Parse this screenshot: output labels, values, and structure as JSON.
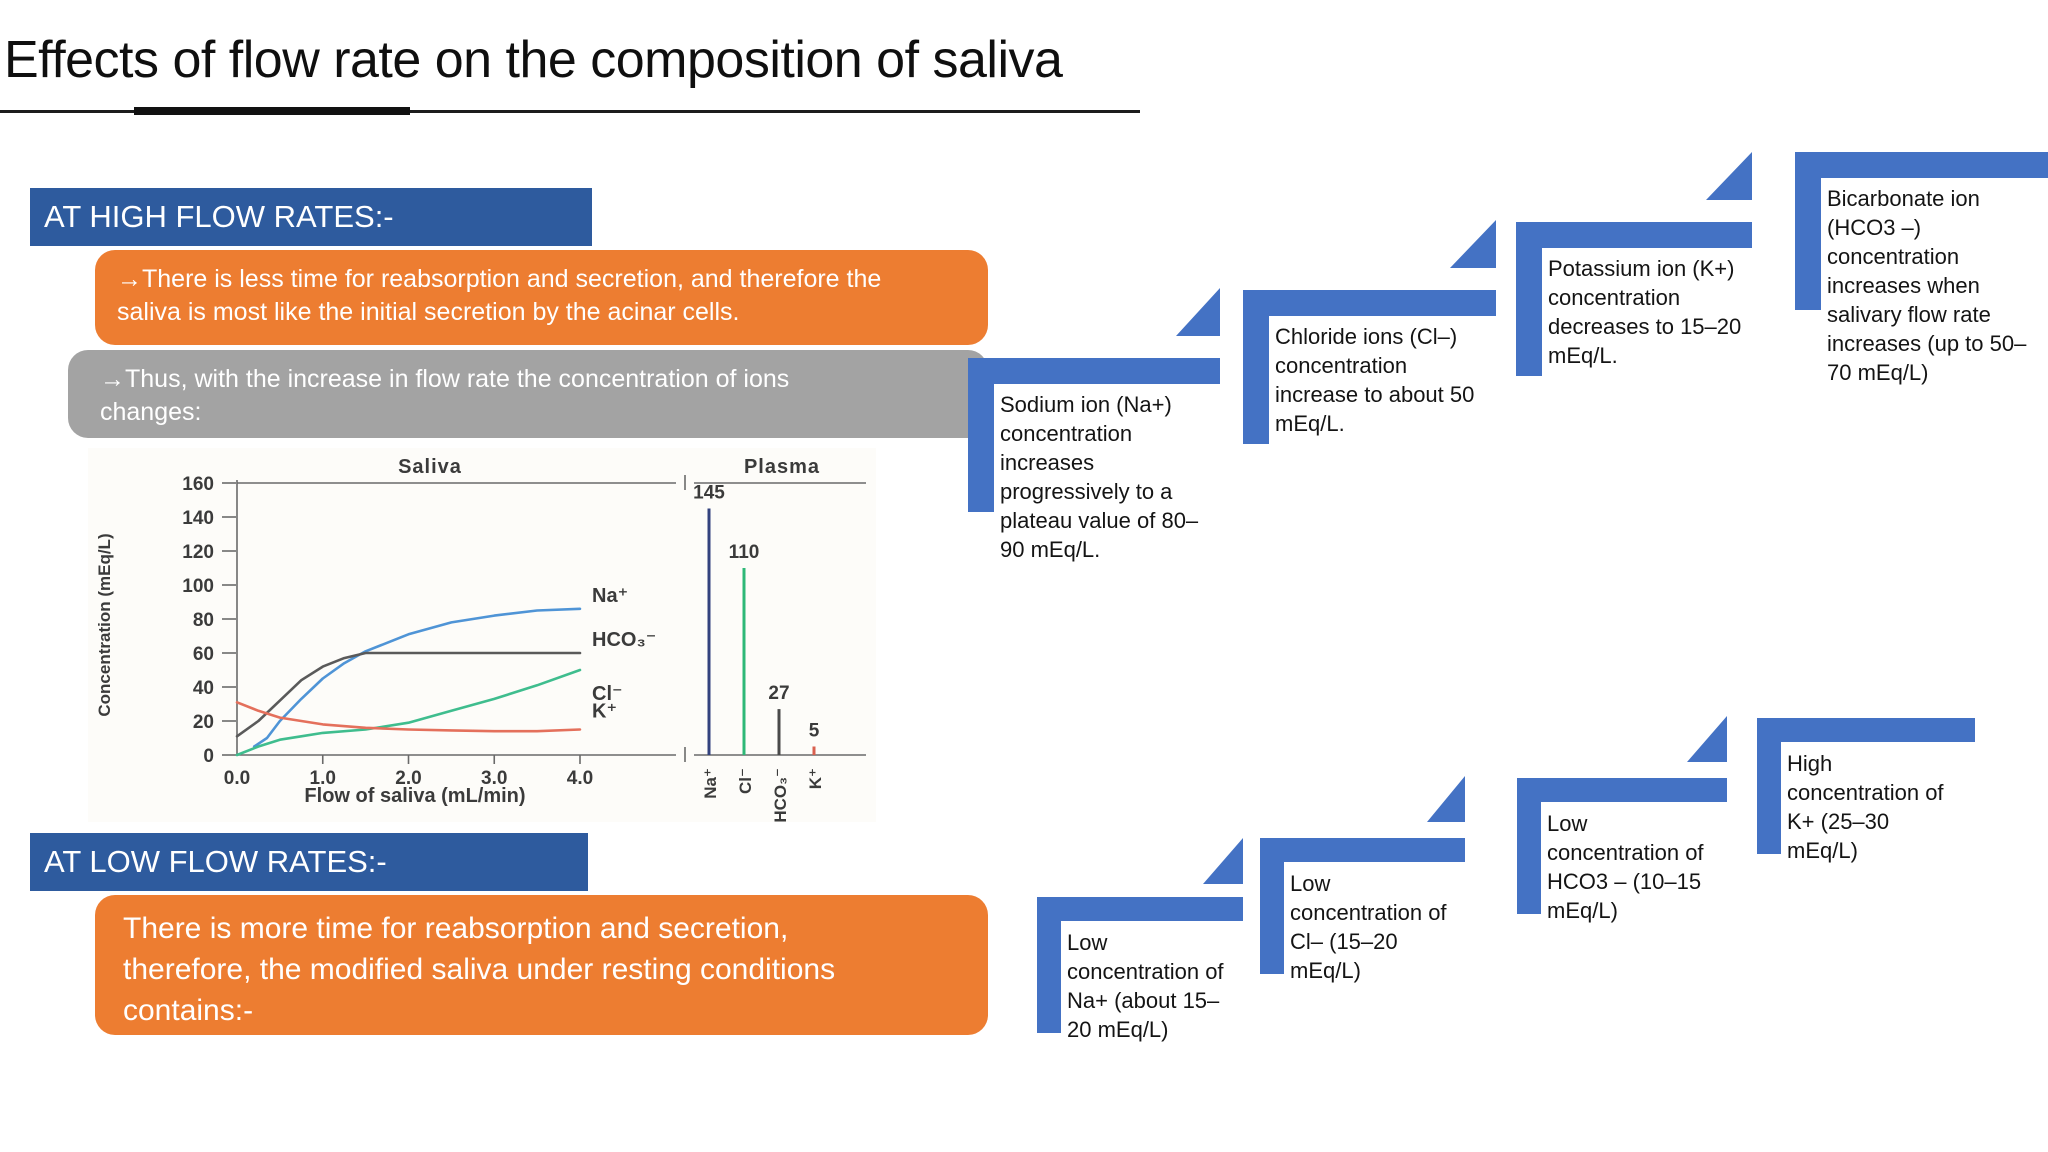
{
  "slide": {
    "title": "Effects of flow rate on the composition of saliva",
    "high_flow": {
      "header": "AT HIGH FLOW RATES:-",
      "point1": "→There is less time for reabsorption and secretion, and therefore the saliva is most like the initial secretion by the acinar cells.",
      "point2": "→Thus, with the increase in flow rate the concentration of ions changes:"
    },
    "low_flow": {
      "header": "AT LOW FLOW RATES:-",
      "point1": "There is more time for reabsorption and secretion, therefore, the modified saliva under resting conditions contains:-"
    },
    "high_flow_steps": [
      "Sodium ion (Na+) concentration increases progressively to a plateau value of 80–90 mEq/L.",
      "Chloride ions (Cl–) concentration increase to about 50 mEq/L.",
      "Potassium ion (K+) concentration decreases to 15–20 mEq/L.",
      "Bicarbonate ion (HCO3 –) concentration increases when salivary flow rate increases (up to 50–70 mEq/L)"
    ],
    "low_flow_steps": [
      "Low concentration of Na+ (about 15–20 mEq/L)",
      "Low concentration of Cl– (15–20 mEq/L)",
      "Low concentration of HCO3 – (10–15 mEq/L)",
      "High concentration of K+ (25–30 mEq/L)"
    ]
  },
  "colors": {
    "header_blue": "#2E5B9E",
    "step_blue": "#4472C4",
    "orange": "#ED7D31",
    "gray": "#A3A3A3"
  },
  "chart_data": {
    "type": "line",
    "title_left": "Saliva",
    "title_right": "Plasma",
    "xlabel": "Flow of saliva (mL/min)",
    "ylabel": "Concentration (mEq/L)",
    "xlim": [
      0,
      4
    ],
    "ylim": [
      0,
      160
    ],
    "grid": false,
    "x_tick_labels": [
      "0.0",
      "1.0",
      "2.0",
      "3.0",
      "4.0"
    ],
    "y_ticks": [
      0,
      20,
      40,
      60,
      80,
      100,
      120,
      140,
      160
    ],
    "series": [
      {
        "name": "Na⁺",
        "color": "#4f94d6",
        "points": [
          [
            0.2,
            5
          ],
          [
            0.35,
            10
          ],
          [
            0.5,
            20
          ],
          [
            0.75,
            33
          ],
          [
            1.0,
            45
          ],
          [
            1.25,
            54
          ],
          [
            1.5,
            61
          ],
          [
            1.75,
            66
          ],
          [
            2.0,
            71
          ],
          [
            2.5,
            78
          ],
          [
            3.0,
            82
          ],
          [
            3.5,
            85
          ],
          [
            4.0,
            86
          ]
        ]
      },
      {
        "name": "HCO₃⁻",
        "color": "#5a5a5a",
        "points": [
          [
            0,
            11
          ],
          [
            0.25,
            20
          ],
          [
            0.5,
            32
          ],
          [
            0.75,
            44
          ],
          [
            1.0,
            52
          ],
          [
            1.25,
            57
          ],
          [
            1.5,
            60
          ],
          [
            2.0,
            60
          ],
          [
            3.0,
            60
          ],
          [
            4.0,
            60
          ]
        ]
      },
      {
        "name": "Cl⁻",
        "color": "#3fbd8e",
        "points": [
          [
            0,
            0
          ],
          [
            0.25,
            5
          ],
          [
            0.5,
            9
          ],
          [
            0.75,
            11
          ],
          [
            1.0,
            13
          ],
          [
            1.5,
            15
          ],
          [
            2.0,
            19
          ],
          [
            2.5,
            26
          ],
          [
            3.0,
            33
          ],
          [
            3.5,
            41
          ],
          [
            4.0,
            50
          ]
        ]
      },
      {
        "name": "K⁺",
        "color": "#e4705c",
        "points": [
          [
            0,
            31
          ],
          [
            0.25,
            26
          ],
          [
            0.5,
            22
          ],
          [
            0.75,
            20
          ],
          [
            1.0,
            18
          ],
          [
            1.5,
            16
          ],
          [
            2.0,
            15
          ],
          [
            2.5,
            14.5
          ],
          [
            3.0,
            14
          ],
          [
            3.5,
            14
          ],
          [
            4.0,
            15
          ]
        ]
      }
    ],
    "plasma_bars": [
      {
        "label": "Na⁺",
        "value": 145,
        "color": "#33427e"
      },
      {
        "label": "Cl⁻",
        "value": 110,
        "color": "#2eb877"
      },
      {
        "label": "HCO₃⁻",
        "value": 27,
        "color": "#4a4a4a"
      },
      {
        "label": "K⁺",
        "value": 5,
        "color": "#d9604f"
      }
    ]
  }
}
